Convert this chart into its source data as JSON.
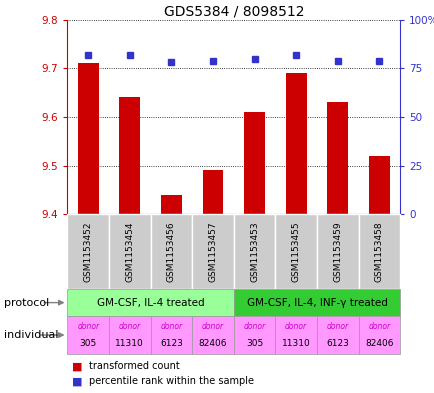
{
  "title": "GDS5384 / 8098512",
  "samples": [
    "GSM1153452",
    "GSM1153454",
    "GSM1153456",
    "GSM1153457",
    "GSM1153453",
    "GSM1153455",
    "GSM1153459",
    "GSM1153458"
  ],
  "transformed_counts": [
    9.71,
    9.64,
    9.44,
    9.49,
    9.61,
    9.69,
    9.63,
    9.52
  ],
  "percentile_ranks": [
    82,
    82,
    78,
    79,
    80,
    82,
    79,
    79
  ],
  "ylim_left": [
    9.4,
    9.8
  ],
  "ylim_right": [
    0,
    100
  ],
  "yticks_left": [
    9.4,
    9.5,
    9.6,
    9.7,
    9.8
  ],
  "yticks_right": [
    0,
    25,
    50,
    75,
    100
  ],
  "ytick_labels_right": [
    "0",
    "25",
    "50",
    "75",
    "100%"
  ],
  "bar_color": "#cc0000",
  "dot_color": "#3333cc",
  "protocol_labels": [
    "GM-CSF, IL-4 treated",
    "GM-CSF, IL-4, INF-γ treated"
  ],
  "protocol_groups": [
    4,
    4
  ],
  "protocol_color_light": "#99ff99",
  "protocol_color_dark": "#33cc33",
  "individual_labels": [
    "donor\n305",
    "donor\n11310",
    "donor\n6123",
    "donor\n82406",
    "donor\n305",
    "donor\n11310",
    "donor\n6123",
    "donor\n82406"
  ],
  "individual_bg_color": "#ff99ff",
  "individual_highlight_color": "#ff66ff",
  "sample_bg_color": "#cccccc",
  "left_axis_color": "#cc0000",
  "right_axis_color": "#3333cc",
  "bg_color": "#ffffff",
  "border_color": "#999999"
}
